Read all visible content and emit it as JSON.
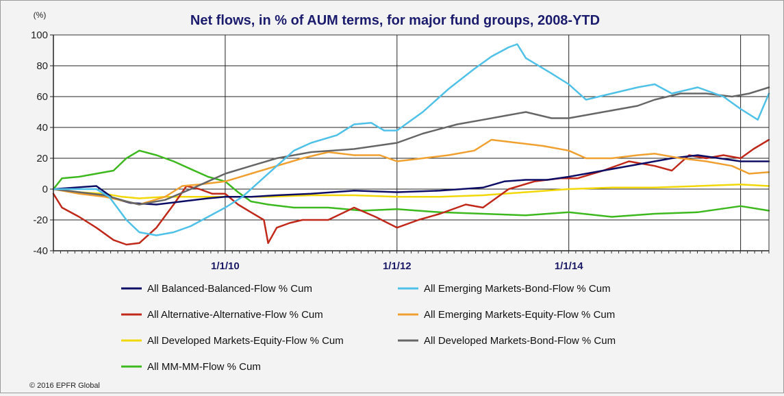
{
  "chart_data": {
    "type": "line",
    "title": "Net flows, in % of AUM terms, for major fund groups, 2008-YTD",
    "ylabel": "(%)",
    "xlabel": "",
    "ylim": [
      -40,
      100
    ],
    "yticks": [
      -40,
      -20,
      0,
      20,
      40,
      60,
      80,
      100
    ],
    "xlim": [
      2008.0,
      2016.33
    ],
    "xticks": [
      {
        "x": 2010.0,
        "label": "1/1/10"
      },
      {
        "x": 2012.0,
        "label": "1/1/12"
      },
      {
        "x": 2014.0,
        "label": "1/1/14"
      }
    ],
    "vgrid": [
      2008.0,
      2010.0,
      2012.0,
      2014.0,
      2016.0
    ],
    "grid": true,
    "legend_position": "bottom",
    "source": "© 2016 EPFR Global",
    "series": [
      {
        "name": "All Balanced-Balanced-Flow % Cum",
        "color": "#0d0d66",
        "x": [
          2008.0,
          2008.25,
          2008.5,
          2008.7,
          2008.9,
          2009.2,
          2009.5,
          2009.8,
          2010.0,
          2010.3,
          2010.6,
          2011.0,
          2011.5,
          2012.0,
          2012.5,
          2013.0,
          2013.25,
          2013.5,
          2013.75,
          2014.0,
          2014.4,
          2014.8,
          2015.2,
          2015.5,
          2015.75,
          2016.0,
          2016.33
        ],
        "y": [
          0,
          1,
          2,
          -6,
          -9,
          -10,
          -8,
          -6,
          -5,
          -5,
          -4,
          -3,
          -1,
          -2,
          -1,
          1,
          5,
          6,
          6,
          8,
          12,
          16,
          20,
          22,
          20,
          18,
          18
        ]
      },
      {
        "name": "All Alternative-Alternative-Flow % Cum",
        "color": "#c0281a",
        "x": [
          2008.0,
          2008.1,
          2008.3,
          2008.5,
          2008.7,
          2008.85,
          2009.0,
          2009.2,
          2009.4,
          2009.55,
          2009.7,
          2009.85,
          2010.0,
          2010.15,
          2010.3,
          2010.45,
          2010.5,
          2010.6,
          2010.75,
          2010.9,
          2011.2,
          2011.5,
          2011.75,
          2012.0,
          2012.25,
          2012.5,
          2012.8,
          2013.0,
          2013.3,
          2013.6,
          2013.9,
          2014.1,
          2014.4,
          2014.7,
          2015.0,
          2015.2,
          2015.4,
          2015.6,
          2015.8,
          2016.0,
          2016.15,
          2016.33
        ],
        "y": [
          -3,
          -12,
          -18,
          -25,
          -33,
          -36,
          -35,
          -25,
          -10,
          2,
          0,
          -3,
          -3,
          -10,
          -15,
          -20,
          -35,
          -25,
          -22,
          -20,
          -20,
          -12,
          -18,
          -25,
          -20,
          -16,
          -10,
          -12,
          0,
          5,
          7,
          7,
          12,
          18,
          15,
          12,
          22,
          20,
          22,
          20,
          26,
          32
        ]
      },
      {
        "name": "All Developed Markets-Equity-Flow % Cum",
        "color": "#f2d80a",
        "x": [
          2008.0,
          2008.3,
          2008.6,
          2008.8,
          2009.0,
          2009.3,
          2009.6,
          2010.0,
          2010.5,
          2011.0,
          2011.5,
          2012.0,
          2012.5,
          2013.0,
          2013.5,
          2014.0,
          2014.5,
          2015.0,
          2015.5,
          2016.0,
          2016.33
        ],
        "y": [
          0,
          -2,
          -3,
          -5,
          -6,
          -5,
          -5,
          -5,
          -5,
          -4,
          -4,
          -5,
          -5,
          -4,
          -2,
          0,
          1,
          1,
          2,
          3,
          2
        ]
      },
      {
        "name": "All MM-MM-Flow % Cum",
        "color": "#3db81e",
        "x": [
          2008.0,
          2008.1,
          2008.3,
          2008.5,
          2008.7,
          2008.85,
          2009.0,
          2009.2,
          2009.4,
          2009.6,
          2009.8,
          2010.0,
          2010.15,
          2010.3,
          2010.5,
          2010.8,
          2011.2,
          2011.6,
          2012.0,
          2012.5,
          2013.0,
          2013.5,
          2014.0,
          2014.5,
          2015.0,
          2015.5,
          2016.0,
          2016.33
        ],
        "y": [
          0,
          7,
          8,
          10,
          12,
          20,
          25,
          22,
          18,
          13,
          8,
          5,
          -2,
          -8,
          -10,
          -12,
          -12,
          -14,
          -13,
          -15,
          -16,
          -17,
          -15,
          -18,
          -16,
          -15,
          -11,
          -14
        ]
      },
      {
        "name": "All Emerging Markets-Bond-Flow % Cum",
        "color": "#4fc1e8",
        "x": [
          2008.0,
          2008.25,
          2008.5,
          2008.65,
          2008.85,
          2009.0,
          2009.2,
          2009.4,
          2009.6,
          2009.8,
          2010.0,
          2010.2,
          2010.4,
          2010.6,
          2010.8,
          2011.0,
          2011.3,
          2011.5,
          2011.7,
          2011.85,
          2012.0,
          2012.1,
          2012.3,
          2012.6,
          2012.9,
          2013.1,
          2013.3,
          2013.4,
          2013.5,
          2013.8,
          2014.0,
          2014.2,
          2014.5,
          2014.8,
          2015.0,
          2015.2,
          2015.5,
          2015.8,
          2016.0,
          2016.2,
          2016.33
        ],
        "y": [
          0,
          0,
          0,
          -5,
          -20,
          -28,
          -30,
          -28,
          -24,
          -18,
          -12,
          -5,
          5,
          15,
          25,
          30,
          35,
          42,
          43,
          38,
          38,
          42,
          50,
          65,
          78,
          86,
          92,
          94,
          85,
          75,
          68,
          58,
          62,
          66,
          68,
          62,
          66,
          60,
          52,
          45,
          62
        ]
      },
      {
        "name": "All Emerging Markets-Equity-Flow % Cum",
        "color": "#f0a030",
        "x": [
          2008.0,
          2008.3,
          2008.6,
          2008.85,
          2009.0,
          2009.3,
          2009.5,
          2009.7,
          2010.0,
          2010.3,
          2010.6,
          2010.9,
          2011.2,
          2011.5,
          2011.8,
          2012.0,
          2012.3,
          2012.6,
          2012.9,
          2013.1,
          2013.4,
          2013.7,
          2014.0,
          2014.2,
          2014.5,
          2014.8,
          2015.0,
          2015.3,
          2015.6,
          2015.9,
          2016.1,
          2016.33
        ],
        "y": [
          0,
          -3,
          -5,
          -8,
          -10,
          -5,
          2,
          3,
          5,
          10,
          15,
          20,
          24,
          22,
          22,
          18,
          20,
          22,
          25,
          32,
          30,
          28,
          25,
          20,
          20,
          22,
          23,
          20,
          18,
          15,
          10,
          11
        ]
      },
      {
        "name": "All Developed Markets-Bond-Flow % Cum",
        "color": "#666666",
        "x": [
          2008.0,
          2008.3,
          2008.6,
          2008.85,
          2009.0,
          2009.3,
          2009.6,
          2009.8,
          2010.0,
          2010.3,
          2010.6,
          2011.0,
          2011.5,
          2012.0,
          2012.3,
          2012.7,
          2013.0,
          2013.3,
          2013.5,
          2013.8,
          2014.0,
          2014.4,
          2014.8,
          2015.0,
          2015.3,
          2015.6,
          2015.9,
          2016.1,
          2016.33
        ],
        "y": [
          0,
          -2,
          -4,
          -8,
          -10,
          -7,
          0,
          5,
          10,
          15,
          20,
          24,
          26,
          30,
          36,
          42,
          45,
          48,
          50,
          46,
          46,
          50,
          54,
          58,
          62,
          62,
          60,
          62,
          66
        ]
      }
    ]
  }
}
